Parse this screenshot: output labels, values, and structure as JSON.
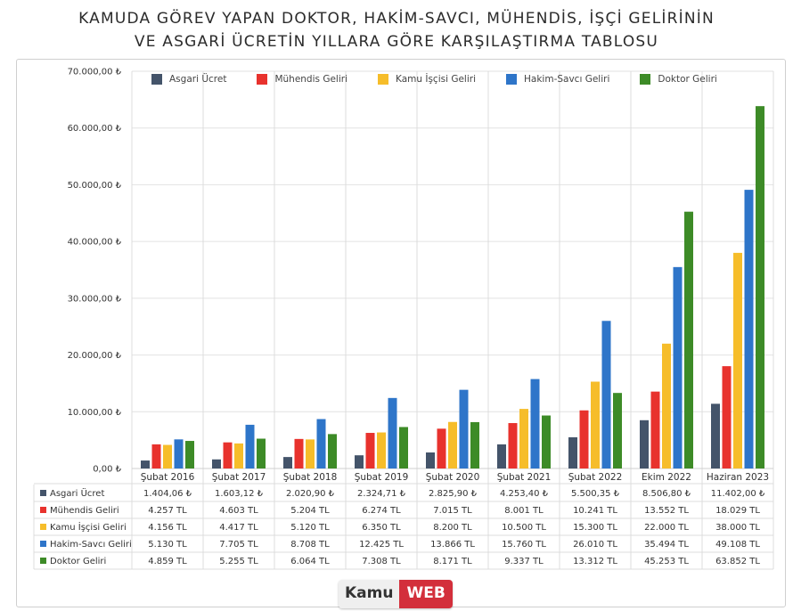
{
  "title_line1": "KAMUDA GÖREV YAPAN DOKTOR, HAKİM-SAVCI, MÜHENDİS, İŞÇİ GELİRİNİN",
  "title_line2": "VE ASGARİ ÜCRETİN YILLARA GÖRE KARŞILAŞTIRMA TABLOSU",
  "watermark": {
    "part1": "Kamu",
    "part2": "WEB"
  },
  "chart_data": {
    "type": "bar",
    "title": "KAMUDA GÖREV YAPAN DOKTOR, HAKİM-SAVCI, MÜHENDİS, İŞÇİ GELİRİNİN VE ASGARİ ÜCRETİN YILLARA GÖRE KARŞILAŞTIRMA TABLOSU",
    "categories": [
      "Şubat 2016",
      "Şubat 2017",
      "Şubat 2018",
      "Şubat 2019",
      "Şubat 2020",
      "Şubat 2021",
      "Şubat 2022",
      "Ekim 2022",
      "Haziran 2023"
    ],
    "ylim": [
      0,
      70000
    ],
    "yticks": [
      "0,00 ₺",
      "10.000,00 ₺",
      "20.000,00 ₺",
      "30.000,00 ₺",
      "40.000,00 ₺",
      "50.000,00 ₺",
      "60.000,00 ₺",
      "70.000,00 ₺"
    ],
    "legend_position": "top",
    "grid": true,
    "series": [
      {
        "name": "Asgari Ücret",
        "color": "#44546a",
        "values": [
          1404.06,
          1603.12,
          2020.9,
          2324.71,
          2825.9,
          4253.4,
          5500.35,
          8506.8,
          11402.0
        ],
        "labels": [
          "1.404,06 ₺",
          "1.603,12 ₺",
          "2.020,90 ₺",
          "2.324,71 ₺",
          "2.825,90 ₺",
          "4.253,40 ₺",
          "5.500,35 ₺",
          "8.506,80 ₺",
          "11.402,00 ₺"
        ]
      },
      {
        "name": "Mühendis Geliri",
        "color": "#e8322d",
        "values": [
          4257,
          4603,
          5204,
          6274,
          7015,
          8001,
          10241,
          13552,
          18029
        ],
        "labels": [
          "4.257 TL",
          "4.603 TL",
          "5.204 TL",
          "6.274 TL",
          "7.015 TL",
          "8.001 TL",
          "10.241 TL",
          "13.552 TL",
          "18.029 TL"
        ]
      },
      {
        "name": "Kamu İşçisi Geliri",
        "color": "#f6bd2a",
        "values": [
          4156,
          4417,
          5120,
          6350,
          8200,
          10500,
          15300,
          22000,
          38000
        ],
        "labels": [
          "4.156 TL",
          "4.417 TL",
          "5.120 TL",
          "6.350 TL",
          "8.200 TL",
          "10.500 TL",
          "15.300 TL",
          "22.000 TL",
          "38.000 TL"
        ]
      },
      {
        "name": "Hakim-Savcı Geliri",
        "color": "#2e75c9",
        "values": [
          5130,
          7705,
          8708,
          12425,
          13866,
          15760,
          26010,
          35494,
          49108
        ],
        "labels": [
          "5.130 TL",
          "7.705 TL",
          "8.708 TL",
          "12.425 TL",
          "13.866 TL",
          "15.760 TL",
          "26.010 TL",
          "35.494 TL",
          "49.108 TL"
        ]
      },
      {
        "name": "Doktor Geliri",
        "color": "#3d8b27",
        "values": [
          4859,
          5255,
          6064,
          7308,
          8171,
          9337,
          13312,
          45253,
          63852
        ],
        "labels": [
          "4.859 TL",
          "5.255 TL",
          "6.064 TL",
          "7.308 TL",
          "8.171 TL",
          "9.337 TL",
          "13.312 TL",
          "45.253 TL",
          "63.852 TL"
        ]
      }
    ]
  }
}
